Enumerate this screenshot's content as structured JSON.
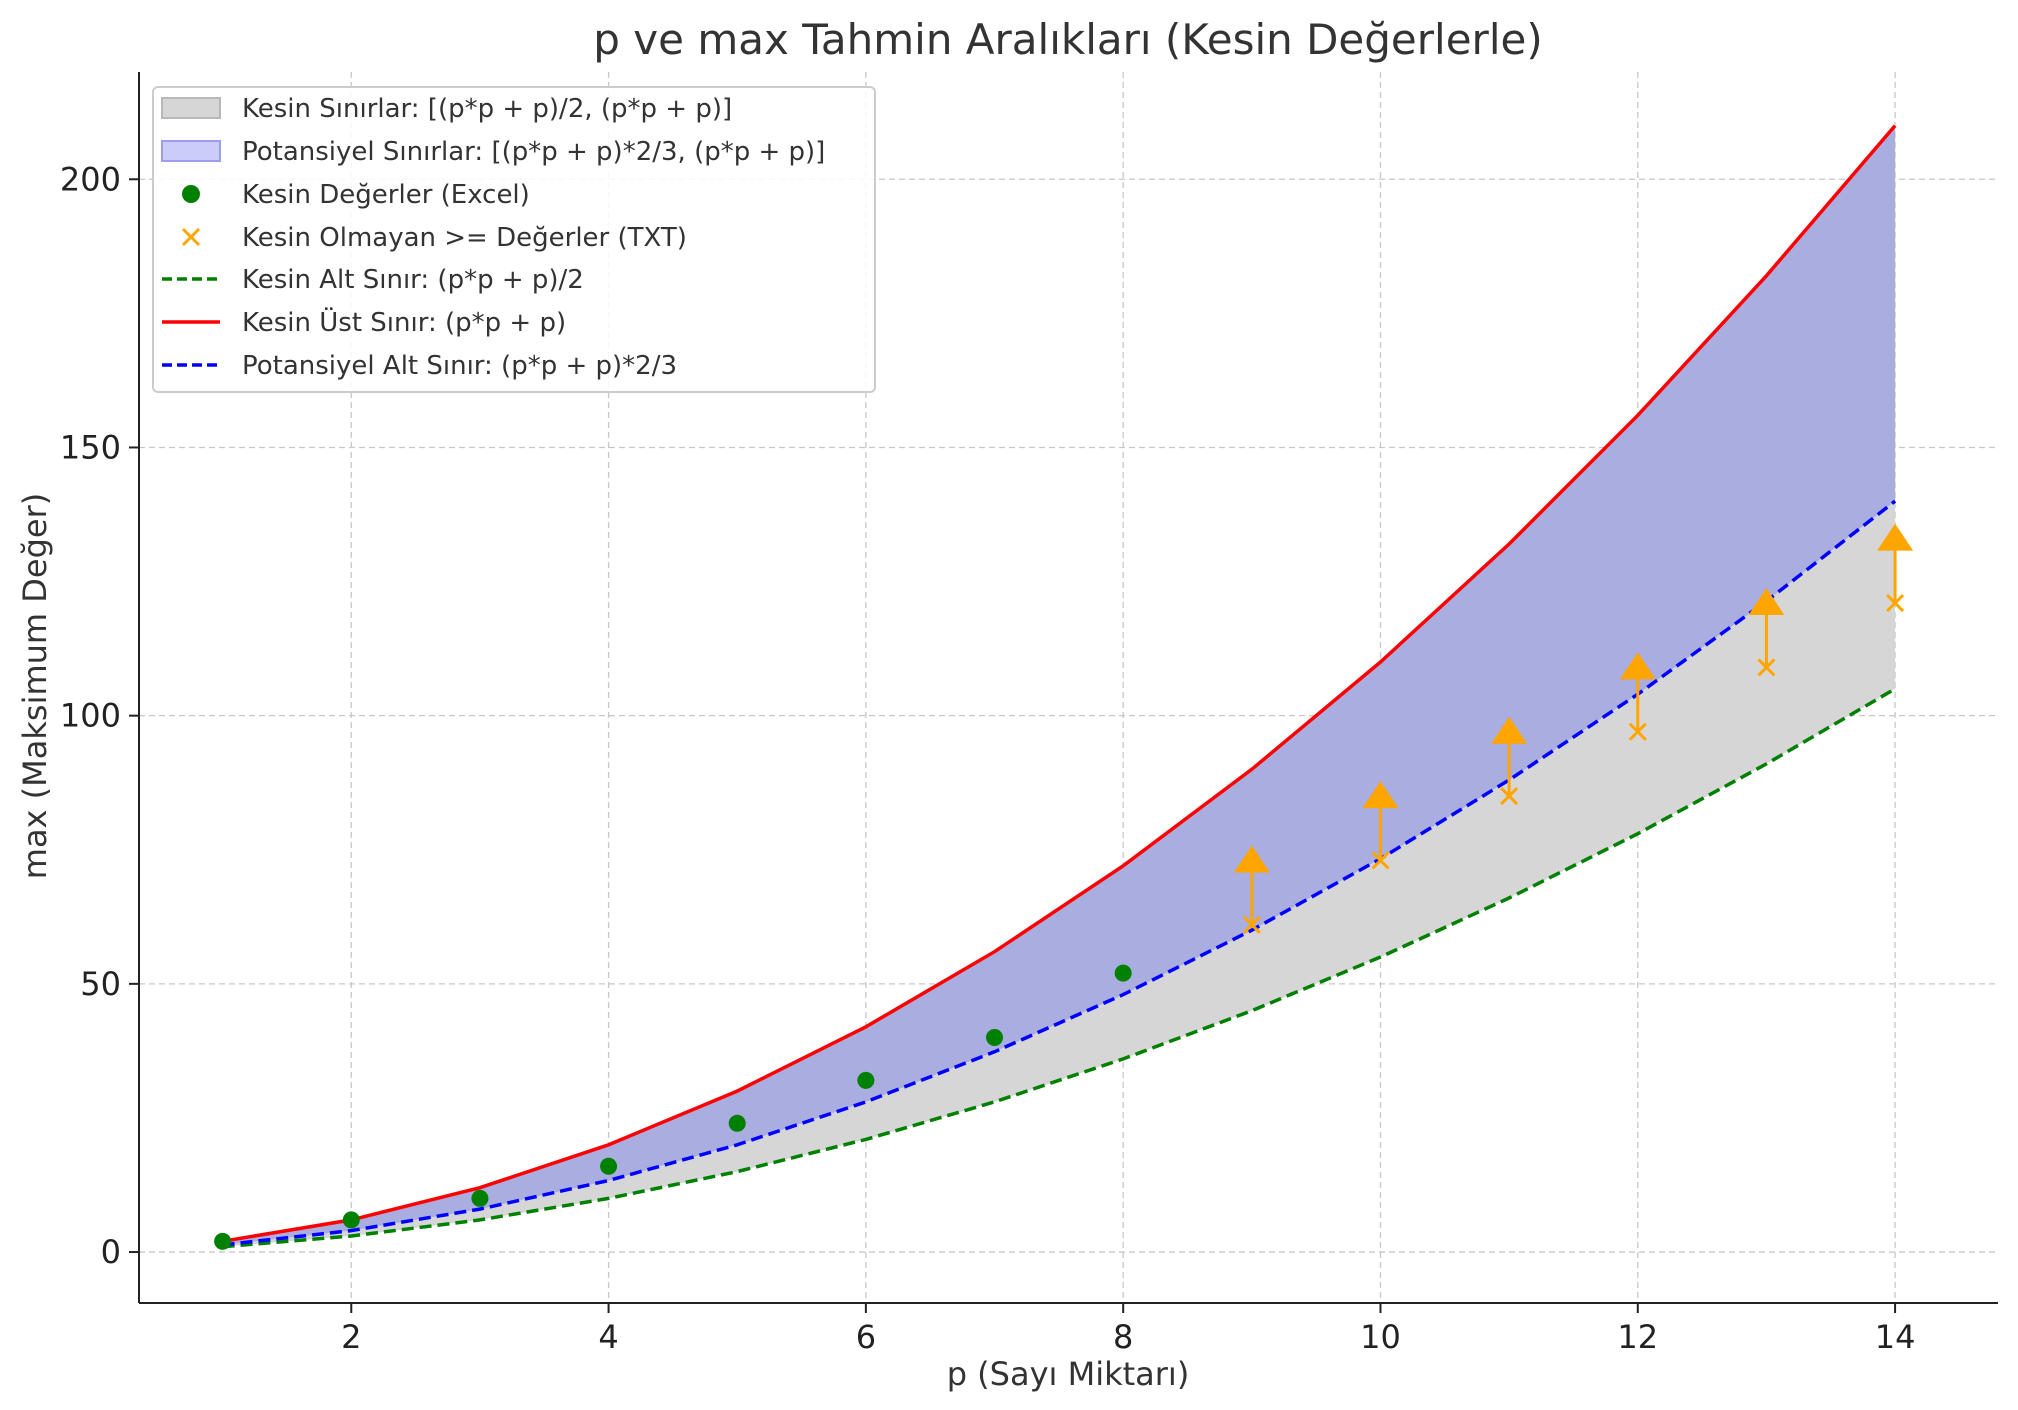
{
  "chart_data": {
    "type": "line",
    "title": "p ve max Tahmin Aralıkları (Kesin Değerlerle)",
    "xlabel": "p (Sayı Miktarı)",
    "ylabel": "max (Maksimum Değer)",
    "xlim": [
      0.35,
      14.8
    ],
    "ylim": [
      -9.5,
      220
    ],
    "xticks": [
      2,
      4,
      6,
      8,
      10,
      12,
      14
    ],
    "yticks": [
      0,
      50,
      100,
      150,
      200
    ],
    "grid": true,
    "legend_position": "top-left",
    "x": [
      1,
      2,
      3,
      4,
      5,
      6,
      7,
      8,
      9,
      10,
      11,
      12,
      13,
      14
    ],
    "bands": [
      {
        "name": "Kesin Sınırlar: [(p*p + p)/2, (p*p + p)]",
        "color": "#d6d6d6",
        "legend_edge": "#b8b8b8",
        "lower": [
          1,
          3,
          6,
          10,
          15,
          21,
          28,
          36,
          45,
          55,
          66,
          78,
          91,
          105
        ],
        "upper": [
          2,
          6,
          12,
          20,
          30,
          42,
          56,
          72,
          90,
          110,
          132,
          156,
          182,
          210
        ]
      },
      {
        "name": "Potansiyel Sınırlar: [(p*p + p)*2/3, (p*p + p)]",
        "color": "#aaaddf",
        "legend_fill": "#ccccf8",
        "legend_edge": "#9d9df0",
        "lower": [
          1.333,
          4,
          8,
          13.333,
          20,
          28,
          37.333,
          48,
          60,
          73.333,
          88,
          104,
          121.333,
          140
        ],
        "upper": [
          2,
          6,
          12,
          20,
          30,
          42,
          56,
          72,
          90,
          110,
          132,
          156,
          182,
          210
        ]
      }
    ],
    "series": [
      {
        "name": "Kesin Değerler (Excel)",
        "kind": "scatter",
        "marker": "circle",
        "color": "#008000",
        "x": [
          1,
          2,
          3,
          4,
          5,
          6,
          7,
          8
        ],
        "values": [
          2,
          6,
          10,
          16,
          24,
          32,
          40,
          52
        ]
      },
      {
        "name": "Kesin Olmayan >= Değerler (TXT)",
        "kind": "scatter",
        "marker": "x",
        "color": "#ffa500",
        "x": [
          9,
          10,
          11,
          12,
          13,
          14
        ],
        "values": [
          61,
          73,
          85,
          97,
          109,
          121
        ],
        "arrow_to": [
          73,
          85,
          97,
          109,
          121,
          133
        ]
      },
      {
        "name": "Kesin Alt Sınır: (p*p + p)/2",
        "kind": "line",
        "dash": "dashed",
        "color": "#008000",
        "values": [
          1,
          3,
          6,
          10,
          15,
          21,
          28,
          36,
          45,
          55,
          66,
          78,
          91,
          105
        ]
      },
      {
        "name": "Kesin Üst Sınır: (p*p + p)",
        "kind": "line",
        "dash": "solid",
        "color": "#ff0000",
        "values": [
          2,
          6,
          12,
          20,
          30,
          42,
          56,
          72,
          90,
          110,
          132,
          156,
          182,
          210
        ]
      },
      {
        "name": "Potansiyel Alt Sınır: (p*p + p)*2/3",
        "kind": "line",
        "dash": "dashed",
        "color": "#0000ff",
        "values": [
          1.333,
          4,
          8,
          13.333,
          20,
          28,
          37.333,
          48,
          60,
          73.333,
          88,
          104,
          121.333,
          140
        ]
      }
    ]
  }
}
